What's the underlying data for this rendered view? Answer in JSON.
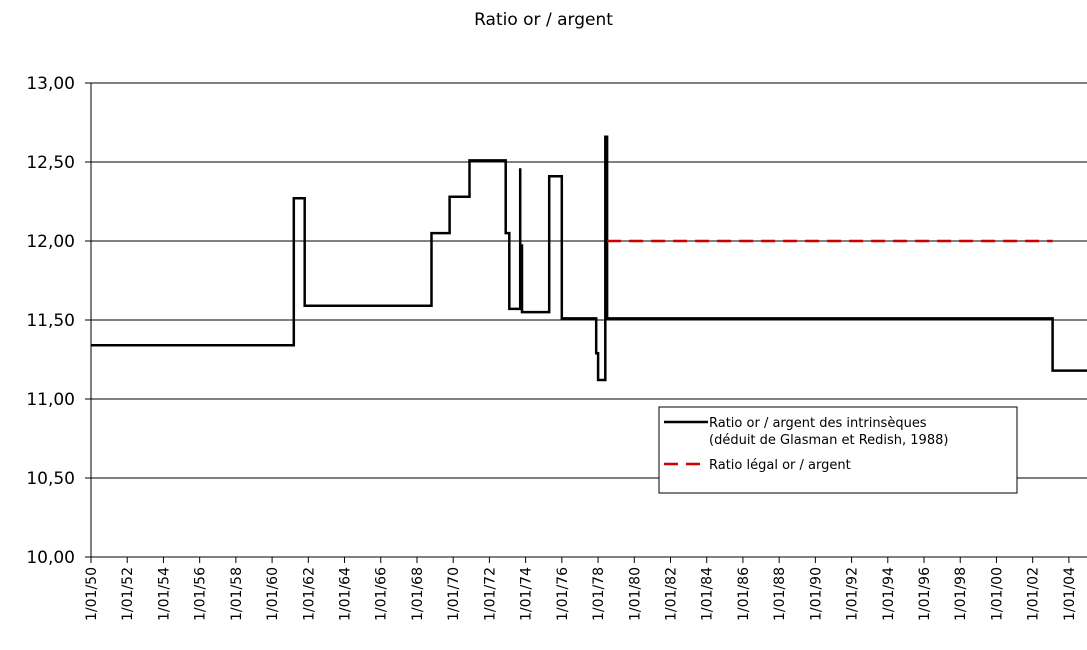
{
  "chart_data": {
    "type": "line",
    "title": "Ratio or / argent",
    "xlabel": "",
    "ylabel": "",
    "ylim": [
      10.0,
      13.0
    ],
    "xlim": [
      1350,
      1405
    ],
    "y_ticks": [
      "10,00",
      "10,50",
      "11,00",
      "11,50",
      "12,00",
      "12,50",
      "13,00"
    ],
    "y_tick_values": [
      10.0,
      10.5,
      11.0,
      11.5,
      12.0,
      12.5,
      13.0
    ],
    "x_tick_labels": [
      "1/01/50",
      "1/01/52",
      "1/01/54",
      "1/01/56",
      "1/01/58",
      "1/01/60",
      "1/01/62",
      "1/01/64",
      "1/01/66",
      "1/01/68",
      "1/01/70",
      "1/01/72",
      "1/01/74",
      "1/01/76",
      "1/01/78",
      "1/01/80",
      "1/01/82",
      "1/01/84",
      "1/01/86",
      "1/01/88",
      "1/01/90",
      "1/01/92",
      "1/01/94",
      "1/01/96",
      "1/01/98",
      "1/01/00",
      "1/01/02",
      "1/01/04"
    ],
    "x_tick_values": [
      1350,
      1352,
      1354,
      1356,
      1358,
      1360,
      1362,
      1364,
      1366,
      1368,
      1370,
      1372,
      1374,
      1376,
      1378,
      1380,
      1382,
      1384,
      1386,
      1388,
      1390,
      1392,
      1394,
      1396,
      1398,
      1400,
      1402,
      1404
    ],
    "grid": "horizontal",
    "legend_placement": "lower-right",
    "series": [
      {
        "name": "Ratio or / argent des intrinsèques (déduit de Glasman et Redish, 1988)",
        "color": "#000000",
        "style": "solid-step",
        "points": [
          [
            1350.0,
            11.34
          ],
          [
            1361.2,
            11.34
          ],
          [
            1361.2,
            12.27
          ],
          [
            1361.8,
            12.27
          ],
          [
            1361.8,
            11.59
          ],
          [
            1368.8,
            11.59
          ],
          [
            1368.8,
            12.05
          ],
          [
            1369.8,
            12.05
          ],
          [
            1369.8,
            12.28
          ],
          [
            1370.9,
            12.28
          ],
          [
            1370.9,
            12.51
          ],
          [
            1372.9,
            12.51
          ],
          [
            1372.9,
            12.05
          ],
          [
            1373.1,
            12.05
          ],
          [
            1373.1,
            11.57
          ],
          [
            1373.7,
            11.57
          ],
          [
            1373.7,
            12.46
          ],
          [
            1373.7,
            11.57
          ],
          [
            1373.8,
            11.57
          ],
          [
            1373.8,
            11.98
          ],
          [
            1373.8,
            11.55
          ],
          [
            1375.3,
            11.55
          ],
          [
            1375.3,
            12.41
          ],
          [
            1376.0,
            12.41
          ],
          [
            1376.0,
            11.51
          ],
          [
            1377.9,
            11.51
          ],
          [
            1377.9,
            11.29
          ],
          [
            1378.0,
            11.29
          ],
          [
            1378.0,
            11.12
          ],
          [
            1378.4,
            11.12
          ],
          [
            1378.4,
            12.66
          ],
          [
            1378.5,
            12.66
          ],
          [
            1378.5,
            11.51
          ],
          [
            1403.1,
            11.51
          ],
          [
            1403.1,
            11.18
          ],
          [
            1405.0,
            11.18
          ]
        ]
      },
      {
        "name": "Ratio légal or / argent",
        "color": "#cc0000",
        "style": "dashed",
        "points": [
          [
            1378.5,
            12.0
          ],
          [
            1403.1,
            12.0
          ]
        ]
      }
    ]
  }
}
